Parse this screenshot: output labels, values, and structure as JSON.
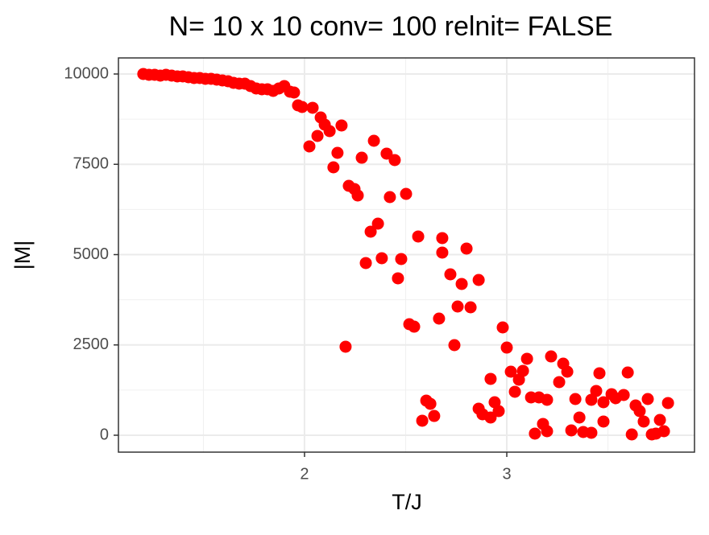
{
  "chart_data": {
    "type": "scatter",
    "title": "N= 10 x 10  conv= 100  relnit= FALSE",
    "x_label": "T/J",
    "y_label": "|M|",
    "color": "#ff0000",
    "grid": true,
    "xlim": [
      1.08,
      3.928
    ],
    "ylim": [
      -468,
      10445
    ],
    "xticks": [
      2,
      3
    ],
    "yticks": [
      0,
      2500,
      5000,
      7500,
      10000
    ],
    "x": [
      1.203,
      1.231,
      1.259,
      1.287,
      1.315,
      1.343,
      1.371,
      1.398,
      1.426,
      1.454,
      1.482,
      1.51,
      1.538,
      1.566,
      1.594,
      1.622,
      1.649,
      1.677,
      1.705,
      1.733,
      1.761,
      1.789,
      1.817,
      1.845,
      1.873,
      1.9,
      1.928,
      1.948,
      1.968,
      1.988,
      2.04,
      2.08,
      2.1,
      2.124,
      2.183,
      2.024,
      2.064,
      2.163,
      2.143,
      2.219,
      2.247,
      2.263,
      2.283,
      2.343,
      2.406,
      2.446,
      2.422,
      2.502,
      2.327,
      2.363,
      2.303,
      2.382,
      2.478,
      2.462,
      2.562,
      2.681,
      2.681,
      2.721,
      2.801,
      2.777,
      2.861,
      2.757,
      2.821,
      2.518,
      2.542,
      2.665,
      2.741,
      2.98,
      3.0,
      2.203,
      2.92,
      3.02,
      3.08,
      3.1,
      3.06,
      3.04,
      3.219,
      3.279,
      3.299,
      3.259,
      3.12,
      3.159,
      3.458,
      3.598,
      3.578,
      3.538,
      3.442,
      3.518,
      3.478,
      3.199,
      3.339,
      3.418,
      2.861,
      2.94,
      2.96,
      2.88,
      2.92,
      2.602,
      2.622,
      2.641,
      2.582,
      3.359,
      3.478,
      3.637,
      3.697,
      3.657,
      3.677,
      3.797,
      3.139,
      3.179,
      3.199,
      3.319,
      3.378,
      3.418,
      3.737,
      3.777,
      3.618,
      3.717,
      3.757
    ],
    "values": [
      10000,
      9978,
      9978,
      9955,
      9978,
      9955,
      9933,
      9933,
      9911,
      9889,
      9889,
      9866,
      9866,
      9844,
      9822,
      9800,
      9755,
      9733,
      9733,
      9666,
      9599,
      9577,
      9577,
      9532,
      9599,
      9666,
      9510,
      9488,
      9131,
      9087,
      9065,
      8797,
      8597,
      8419,
      8575,
      7996,
      8285,
      7817,
      7416,
      6904,
      6815,
      6637,
      7683,
      8151,
      7795,
      7617,
      6592,
      6681,
      5635,
      5857,
      4766,
      4900,
      4878,
      4343,
      5501,
      5457,
      5056,
      4454,
      5167,
      4187,
      4298,
      3563,
      3541,
      3073,
      3006,
      3229,
      2494,
      2984,
      2427,
      2450,
      1559,
      1759,
      1782,
      2116,
      1537,
      1203,
      2182,
      1982,
      1759,
      1470,
      1047,
      1047,
      1715,
      1737,
      1114,
      1024,
      1225,
      1136,
      913,
      980,
      1002,
      980,
      735,
      913,
      668,
      579,
      490,
      958,
      869,
      534,
      401,
      490,
      379,
      824,
      1002,
      668,
      379,
      891,
      45,
      312,
      111,
      134,
      89,
      67,
      45,
      111,
      22,
      22,
      423
    ]
  }
}
